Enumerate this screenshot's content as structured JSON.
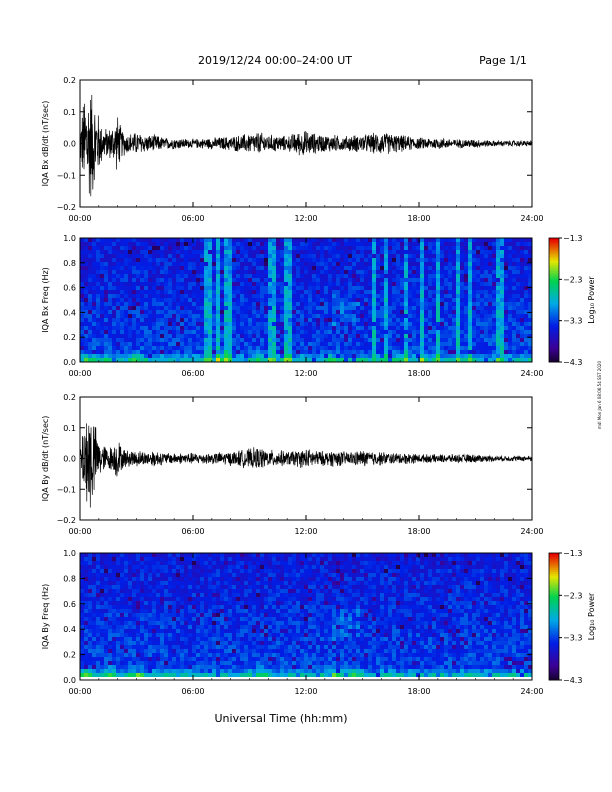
{
  "header": {
    "title": "2019/12/24  00:00–24:00 UT",
    "page": "Page 1/1"
  },
  "side_note": "mdl Mon Jan 6 08:06:54 SST 2020",
  "xlabel": "Universal Time (hh:mm)",
  "chart_data": [
    {
      "type": "line",
      "ylabel": "IQA Bx dB/dt (nT/sec)",
      "xlim": [
        0,
        24
      ],
      "ylim": [
        -0.2,
        0.2
      ],
      "x_ticks": [
        "00:00",
        "06:00",
        "12:00",
        "18:00",
        "24:00"
      ],
      "y_ticks": [
        "0.2",
        "0.1",
        "0.0",
        "−0.1",
        "−0.2"
      ],
      "envelope": {
        "hours": [
          0,
          0.2,
          0.4,
          0.6,
          0.8,
          1.0,
          1.2,
          1.5,
          1.8,
          2.0,
          2.2,
          2.5,
          3.0,
          3.5,
          4.0,
          4.5,
          5.0,
          6.0,
          7.0,
          8.0,
          8.5,
          9.0,
          9.5,
          10.0,
          10.5,
          11.0,
          11.5,
          12.0,
          12.5,
          13.0,
          13.5,
          14.0,
          14.5,
          15.0,
          15.5,
          16.0,
          16.5,
          17.0,
          17.5,
          18.0,
          19.0,
          20.0,
          21.0,
          22.0,
          23.0,
          24.0
        ],
        "amplitude": [
          0.05,
          0.16,
          0.2,
          0.2,
          0.15,
          0.1,
          0.06,
          0.05,
          0.07,
          0.1,
          0.05,
          0.035,
          0.04,
          0.03,
          0.03,
          0.02,
          0.02,
          0.015,
          0.02,
          0.025,
          0.03,
          0.035,
          0.04,
          0.03,
          0.03,
          0.025,
          0.04,
          0.045,
          0.035,
          0.03,
          0.03,
          0.025,
          0.03,
          0.03,
          0.035,
          0.04,
          0.035,
          0.03,
          0.025,
          0.02,
          0.02,
          0.015,
          0.015,
          0.01,
          0.01,
          0.01
        ]
      }
    },
    {
      "type": "heatmap",
      "ylabel": "IQA Bx Freq (Hz)",
      "xlim": [
        0,
        24
      ],
      "ylim": [
        0,
        1
      ],
      "x_ticks": [
        "00:00",
        "06:00",
        "12:00",
        "18:00",
        "24:00"
      ],
      "y_ticks": [
        "1.0",
        "0.8",
        "0.6",
        "0.4",
        "0.2",
        "0.0"
      ],
      "colorbar": {
        "label": "Log₁₀ Power",
        "ticks": [
          "−1.3",
          "−2.3",
          "−3.3",
          "−4.3"
        ],
        "range": [
          -4.3,
          -1.3
        ]
      },
      "vertical_bands_hours": [
        6.6,
        6.9,
        7.4,
        7.7,
        8.0,
        10.1,
        10.3,
        10.9,
        11.2,
        15.6,
        16.3,
        17.3,
        18.1,
        19.1,
        20.0,
        20.8,
        22.1,
        22.5
      ],
      "low_freq_activity_hours": [
        0.3,
        1.5,
        3.0,
        7.5,
        9.5,
        13.5,
        17.0
      ]
    },
    {
      "type": "line",
      "ylabel": "IQA By dB/dt (nT/sec)",
      "xlim": [
        0,
        24
      ],
      "ylim": [
        -0.2,
        0.2
      ],
      "x_ticks": [
        "00:00",
        "06:00",
        "12:00",
        "18:00",
        "24:00"
      ],
      "y_ticks": [
        "0.2",
        "0.1",
        "0.0",
        "−0.1",
        "−0.2"
      ],
      "envelope": {
        "hours": [
          0,
          0.2,
          0.4,
          0.6,
          0.8,
          1.0,
          1.2,
          1.5,
          1.8,
          2.0,
          2.2,
          2.5,
          3.0,
          3.5,
          4.0,
          4.5,
          5.0,
          6.0,
          7.0,
          8.0,
          8.5,
          9.0,
          9.5,
          10.0,
          10.5,
          11.0,
          11.5,
          12.0,
          12.5,
          13.0,
          13.5,
          14.0,
          14.5,
          15.0,
          15.5,
          16.0,
          16.5,
          17.0,
          17.5,
          18.0,
          19.0,
          20.0,
          21.0,
          22.0,
          23.0,
          24.0
        ],
        "amplitude": [
          0.05,
          0.12,
          0.2,
          0.2,
          0.12,
          0.07,
          0.05,
          0.04,
          0.05,
          0.08,
          0.04,
          0.03,
          0.03,
          0.025,
          0.03,
          0.02,
          0.02,
          0.02,
          0.02,
          0.025,
          0.03,
          0.035,
          0.04,
          0.03,
          0.03,
          0.025,
          0.03,
          0.035,
          0.03,
          0.025,
          0.03,
          0.025,
          0.025,
          0.03,
          0.025,
          0.025,
          0.02,
          0.02,
          0.02,
          0.015,
          0.015,
          0.015,
          0.015,
          0.01,
          0.01,
          0.01
        ]
      }
    },
    {
      "type": "heatmap",
      "ylabel": "IQA By Freq (Hz)",
      "xlim": [
        0,
        24
      ],
      "ylim": [
        0,
        1
      ],
      "x_ticks": [
        "00:00",
        "06:00",
        "12:00",
        "18:00",
        "24:00"
      ],
      "y_ticks": [
        "1.0",
        "0.8",
        "0.6",
        "0.4",
        "0.2",
        "0.0"
      ],
      "colorbar": {
        "label": "Log₁₀ Power",
        "ticks": [
          "−1.3",
          "−2.3",
          "−3.3",
          "−4.3"
        ],
        "range": [
          -4.3,
          -1.3
        ]
      },
      "vertical_bands_hours": [],
      "low_freq_activity_hours": [
        0.3,
        1.5,
        3.0,
        9.5,
        13.5,
        14.5
      ]
    }
  ]
}
